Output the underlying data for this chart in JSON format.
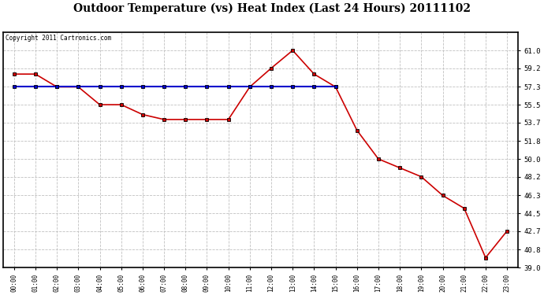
{
  "title": "Outdoor Temperature (vs) Heat Index (Last 24 Hours) 20111102",
  "copyright_text": "Copyright 2011 Cartronics.com",
  "x_labels": [
    "00:00",
    "01:00",
    "02:00",
    "03:00",
    "04:00",
    "05:00",
    "06:00",
    "07:00",
    "08:00",
    "09:00",
    "10:00",
    "11:00",
    "12:00",
    "13:00",
    "14:00",
    "15:00",
    "16:00",
    "17:00",
    "18:00",
    "19:00",
    "20:00",
    "21:00",
    "22:00",
    "23:00"
  ],
  "temp_values": [
    58.6,
    58.6,
    57.3,
    57.3,
    55.5,
    55.5,
    54.5,
    54.0,
    54.0,
    54.0,
    54.0,
    57.3,
    59.2,
    61.0,
    58.6,
    57.3,
    52.9,
    50.0,
    49.1,
    48.2,
    46.3,
    45.0,
    40.0,
    42.7
  ],
  "heat_index_x": [
    0,
    1,
    2,
    3,
    4,
    5,
    6,
    7,
    8,
    9,
    10,
    11,
    12,
    13,
    14,
    15
  ],
  "heat_index_values": [
    57.3,
    57.3,
    57.3,
    57.3,
    57.3,
    57.3,
    57.3,
    57.3,
    57.3,
    57.3,
    57.3,
    57.3,
    57.3,
    57.3,
    57.3,
    57.3
  ],
  "temp_color": "#cc0000",
  "heat_index_color": "#0000cc",
  "ylim_min": 39.0,
  "ylim_max": 62.8,
  "yticks": [
    39.0,
    40.8,
    42.7,
    44.5,
    46.3,
    48.2,
    50.0,
    51.8,
    53.7,
    55.5,
    57.3,
    59.2,
    61.0
  ],
  "background_color": "#ffffff",
  "plot_bg_color": "#ffffff",
  "grid_color": "#c0c0c0",
  "title_fontsize": 10,
  "marker": "s",
  "marker_size": 2.5,
  "marker_color": "#000000",
  "linewidth": 1.2
}
